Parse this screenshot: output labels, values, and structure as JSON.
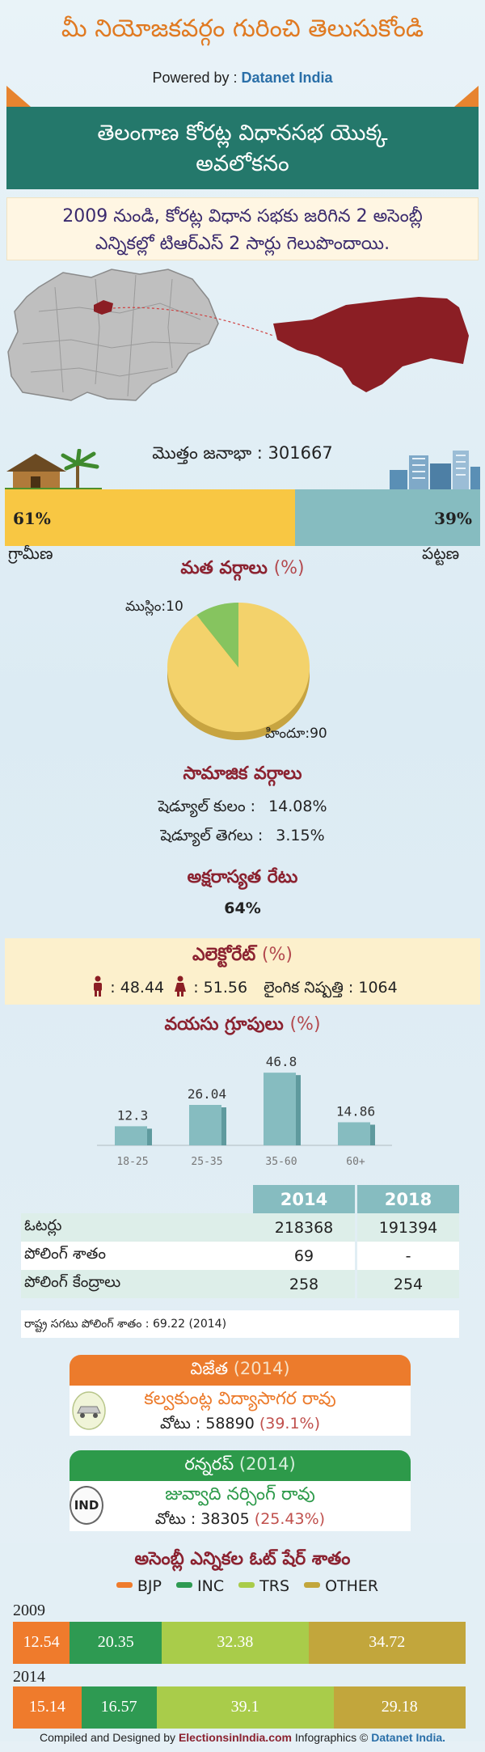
{
  "header": {
    "title": "మీ నియోజకవర్గం గురించి తెలుసుకోండి",
    "powered_by": "Powered by :",
    "brand": "Datanet India"
  },
  "ribbon": {
    "line1": "తెలంగాణ కోరట్ల విధానసభ యొక్క",
    "line2": "అవలోకనం"
  },
  "intro": {
    "line1": "2009 నుండి, కోరట్ల విధాన సభకు జరిగిన 2 అసెంబ్లీ",
    "line2": "ఎన్నికల్లో టిఆర్ఎస్ 2 సార్లు గెలుపొందాయి."
  },
  "population": {
    "label": "మొత్తం జనాభా :",
    "value": "301667"
  },
  "urban_rural": {
    "rural_pct": "61%",
    "urban_pct": "39%",
    "rural_fraction": 0.61,
    "rural_label": "గ్రామీణ",
    "urban_label": "పట్టణ"
  },
  "religion": {
    "title": "మత వర్గాలు",
    "unit": "(%)",
    "muslim_label": "ముస్లిం:10",
    "hindu_label": "హిందూ:90",
    "hindu_pct": 90,
    "muslim_pct": 10
  },
  "social": {
    "title": "సామాజిక వర్గాలు",
    "sc_label": "షెడ్యూల్ కులం :",
    "sc_value": "14.08%",
    "st_label": "షెడ్యూల్ తెగలు :",
    "st_value": "3.15%"
  },
  "literacy": {
    "title": "అక్షరాస్యత రేటు",
    "value": "64%"
  },
  "electorate": {
    "title": "ఎలెక్టోరేట్",
    "unit": "(%)",
    "male": ": 48.44",
    "female": ": 51.56",
    "sex_ratio_label": "లైంగిక నిష్పత్తి :",
    "sex_ratio": "1064"
  },
  "chart_data": {
    "type": "bar",
    "title": "వయసు గ్రూపులు (%)",
    "categories": [
      "18-25",
      "25-35",
      "35-60",
      "60+"
    ],
    "values": [
      12.3,
      26.04,
      46.8,
      14.86
    ],
    "value_labels": [
      "12.3",
      "26.04",
      "46.8",
      "14.86"
    ],
    "ylim": [
      0,
      50
    ],
    "bar_color": "#86bcc0"
  },
  "age": {
    "title": "వయసు గ్రూపులు",
    "unit": "(%)"
  },
  "voters_table": {
    "headers": [
      "2014",
      "2018"
    ],
    "rows": [
      {
        "label": "ఓటర్లు",
        "v2014": "218368",
        "v2018": "191394"
      },
      {
        "label": "పోలింగ్ శాతం",
        "v2014": "69",
        "v2018": "-"
      },
      {
        "label": "పోలింగ్ కేంద్రాలు",
        "v2014": "258",
        "v2018": "254"
      }
    ],
    "state_avg": "రాష్ట్ర సగటు పోలింగ్ శాతం : 69.22 (2014)"
  },
  "winner": {
    "title": "విజేత",
    "year": "(2014)",
    "name": "కల్వకుంట్ల విద్యాసాగర రావు",
    "votes_label": "వోటు : 58890",
    "votes_pct": "(39.1%)",
    "color": "#ec7b2c"
  },
  "runnerup": {
    "title": "రన్నరప్",
    "year": "(2014)",
    "name": "జువ్వాది నర్సింగ్ రావు",
    "votes_label": "వోటు : 38305",
    "votes_pct": "(25.43%)",
    "party_badge": "IND",
    "color": "#2d9a4a"
  },
  "vote_share": {
    "title": "అసెంబ్లీ ఎన్నికల ఓట్ షేర్ శాతం",
    "legend": [
      {
        "name": "BJP",
        "color": "#ef7b2c"
      },
      {
        "name": "INC",
        "color": "#2e9a52"
      },
      {
        "name": "TRS",
        "color": "#a9cc4a"
      },
      {
        "name": "OTHER",
        "color": "#c2a63c"
      }
    ],
    "years": [
      {
        "year": "2009",
        "values": [
          12.54,
          20.35,
          32.38,
          34.72
        ],
        "labels": [
          "12.54",
          "20.35",
          "32.38",
          "34.72"
        ]
      },
      {
        "year": "2014",
        "values": [
          15.14,
          16.57,
          39.1,
          29.18
        ],
        "labels": [
          "15.14",
          "16.57",
          "39.1",
          "29.18"
        ]
      }
    ]
  },
  "footer": {
    "compiled": "Compiled and Designed by",
    "site": "ElectionsinIndia.com",
    "infographics": "Infographics ©",
    "brand": "Datanet India."
  }
}
